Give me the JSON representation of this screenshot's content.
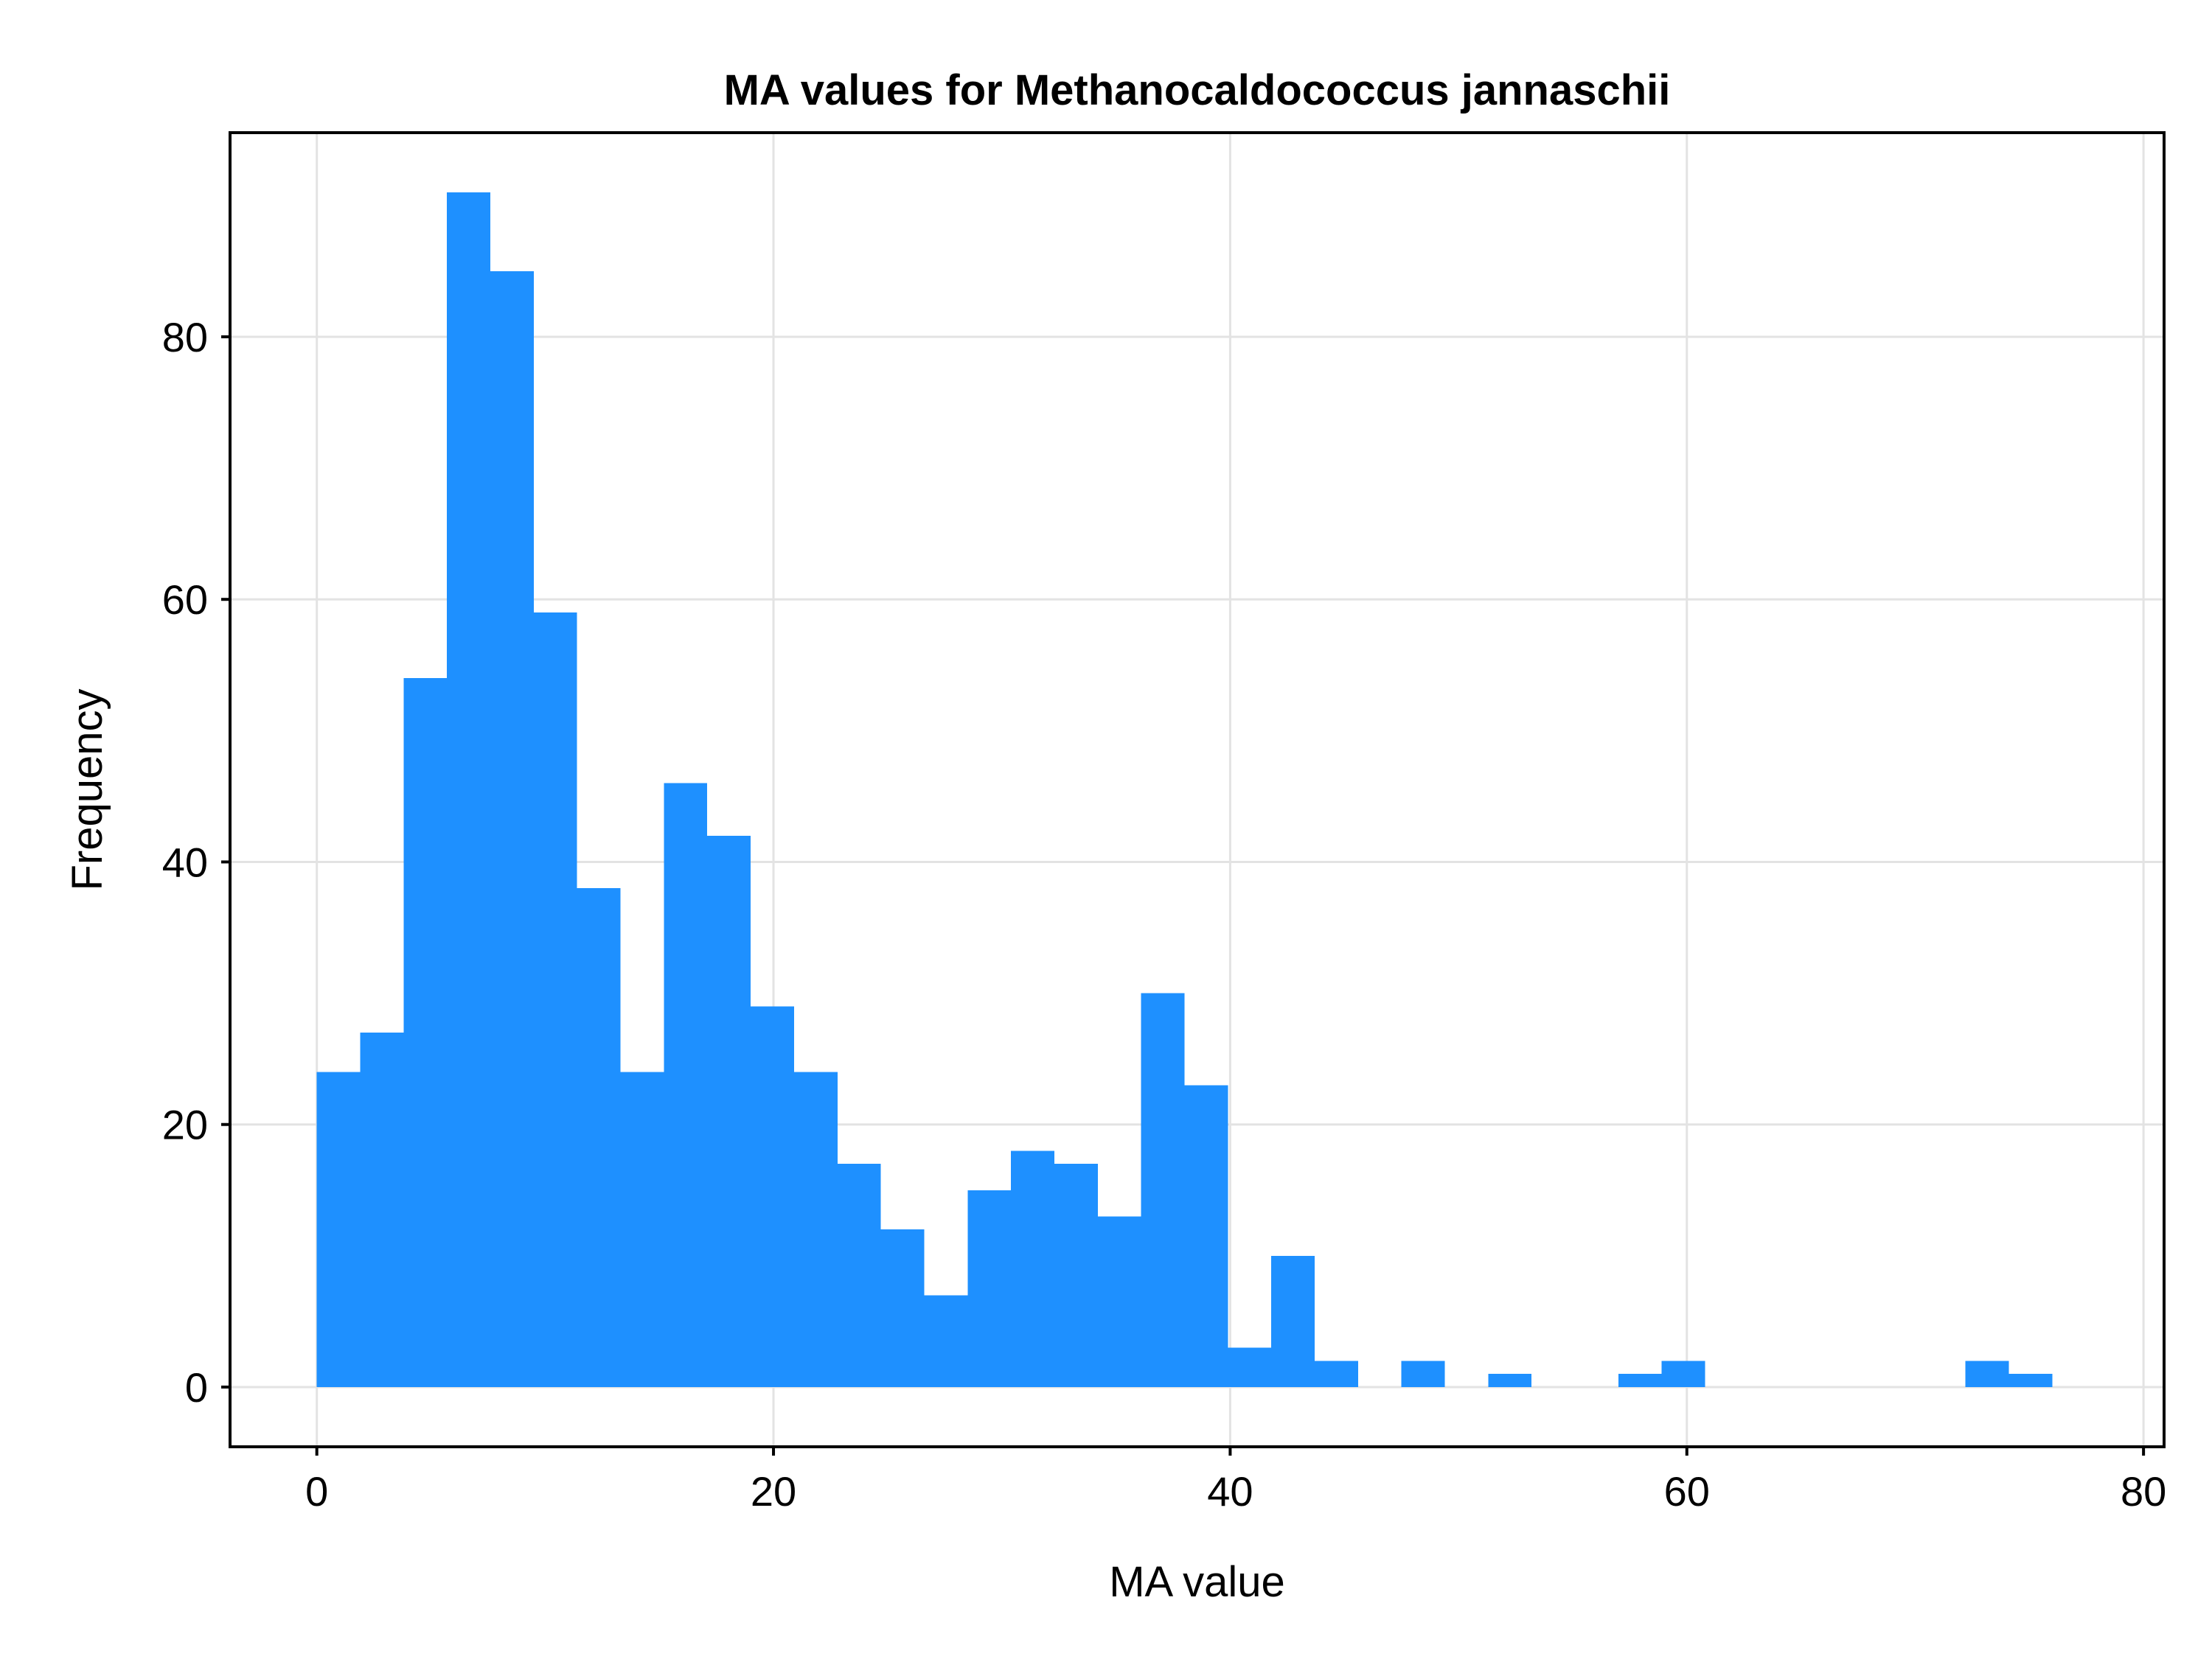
{
  "chart_data": {
    "type": "bar",
    "title": "MA values for Methanocaldococcus jannaschii",
    "xlabel": "MA value",
    "ylabel": "Frequency",
    "xlim": [
      -3.8,
      80.9
    ],
    "ylim": [
      -4.55,
      95.55
    ],
    "xticks": [
      0,
      20,
      40,
      60,
      80
    ],
    "yticks": [
      0,
      20,
      40,
      60,
      80
    ],
    "grid": true,
    "legend": "none",
    "bar_color": "#1e90ff",
    "bin_width": 1.9,
    "bin_start": 0,
    "bins": [
      {
        "x0": 0.0,
        "x1": 1.9,
        "count": 24
      },
      {
        "x0": 1.9,
        "x1": 3.8,
        "count": 27
      },
      {
        "x0": 3.8,
        "x1": 5.7,
        "count": 54
      },
      {
        "x0": 5.7,
        "x1": 7.6,
        "count": 91
      },
      {
        "x0": 7.6,
        "x1": 9.5,
        "count": 85
      },
      {
        "x0": 9.5,
        "x1": 11.4,
        "count": 59
      },
      {
        "x0": 11.4,
        "x1": 13.3,
        "count": 38
      },
      {
        "x0": 13.3,
        "x1": 15.2,
        "count": 24
      },
      {
        "x0": 15.2,
        "x1": 17.1,
        "count": 46
      },
      {
        "x0": 17.1,
        "x1": 19.0,
        "count": 42
      },
      {
        "x0": 19.0,
        "x1": 20.9,
        "count": 29
      },
      {
        "x0": 20.9,
        "x1": 22.8,
        "count": 24
      },
      {
        "x0": 22.8,
        "x1": 24.7,
        "count": 17
      },
      {
        "x0": 24.7,
        "x1": 26.6,
        "count": 12
      },
      {
        "x0": 26.6,
        "x1": 28.5,
        "count": 7
      },
      {
        "x0": 28.5,
        "x1": 30.4,
        "count": 15
      },
      {
        "x0": 30.4,
        "x1": 32.3,
        "count": 18
      },
      {
        "x0": 32.3,
        "x1": 34.2,
        "count": 17
      },
      {
        "x0": 34.2,
        "x1": 36.1,
        "count": 13
      },
      {
        "x0": 36.1,
        "x1": 38.0,
        "count": 30
      },
      {
        "x0": 38.0,
        "x1": 39.9,
        "count": 23
      },
      {
        "x0": 39.9,
        "x1": 41.8,
        "count": 3
      },
      {
        "x0": 41.8,
        "x1": 43.7,
        "count": 10
      },
      {
        "x0": 43.7,
        "x1": 45.6,
        "count": 2
      },
      {
        "x0": 45.6,
        "x1": 47.5,
        "count": 0
      },
      {
        "x0": 47.5,
        "x1": 49.4,
        "count": 2
      },
      {
        "x0": 49.4,
        "x1": 51.3,
        "count": 0
      },
      {
        "x0": 51.3,
        "x1": 53.2,
        "count": 1
      },
      {
        "x0": 53.2,
        "x1": 55.1,
        "count": 0
      },
      {
        "x0": 55.1,
        "x1": 57.0,
        "count": 0
      },
      {
        "x0": 57.0,
        "x1": 58.9,
        "count": 1
      },
      {
        "x0": 58.9,
        "x1": 60.8,
        "count": 2
      },
      {
        "x0": 60.8,
        "x1": 62.7,
        "count": 0
      },
      {
        "x0": 62.7,
        "x1": 64.6,
        "count": 0
      },
      {
        "x0": 64.6,
        "x1": 66.5,
        "count": 0
      },
      {
        "x0": 66.5,
        "x1": 68.4,
        "count": 0
      },
      {
        "x0": 68.4,
        "x1": 70.3,
        "count": 0
      },
      {
        "x0": 70.3,
        "x1": 72.2,
        "count": 0
      },
      {
        "x0": 72.2,
        "x1": 74.1,
        "count": 2
      },
      {
        "x0": 74.1,
        "x1": 76.0,
        "count": 1
      }
    ]
  }
}
